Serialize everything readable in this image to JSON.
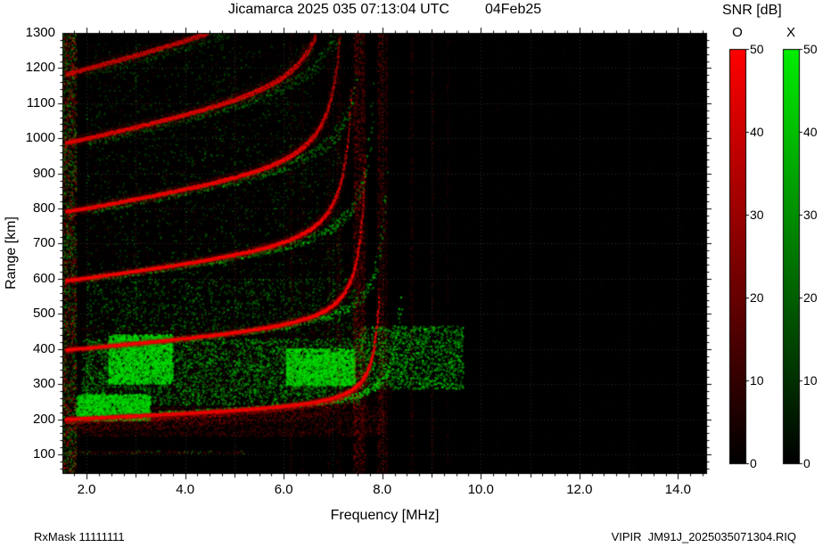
{
  "header": {
    "title": "Jicamarca 2025 035 07:13:04 UTC",
    "date": "04Feb25"
  },
  "axes": {
    "xlabel": "Frequency [MHz]",
    "ylabel": "Range [km]",
    "xtick_labels": [
      "2.0",
      "4.0",
      "6.0",
      "8.0",
      "10.0",
      "12.0",
      "14.0"
    ],
    "xtick_values": [
      2,
      4,
      6,
      8,
      10,
      12,
      14
    ],
    "ytick_values": [
      100,
      200,
      300,
      400,
      500,
      600,
      700,
      800,
      900,
      1000,
      1100,
      1200,
      1300
    ]
  },
  "colorbar": {
    "title": "SNR [dB]",
    "bars": [
      {
        "label": "O",
        "top_color": "#ff0000",
        "ticks": [
          0,
          10,
          20,
          30,
          40,
          50
        ]
      },
      {
        "label": "X",
        "top_color": "#00ee00",
        "ticks": [
          0,
          10,
          20,
          30,
          40,
          50
        ]
      }
    ]
  },
  "footer": {
    "left": "RxMask 11111111",
    "right": "VIPIR  JM91J_2025035071304.RIQ"
  },
  "chart_data": {
    "type": "heatmap",
    "subtype": "ionogram",
    "title": "Jicamarca 2025 035 07:13:04 UTC 04Feb25",
    "xlabel": "Frequency [MHz]",
    "ylabel": "Range [km]",
    "xlim": [
      1.51,
      14.59
    ],
    "ylim": [
      44,
      1300
    ],
    "snr_range_db": [
      0,
      50
    ],
    "legend": {
      "O_mode_color": "#ff0000",
      "X_mode_color": "#00dd00",
      "position": "right"
    },
    "grid": true,
    "colors": {
      "background": "#000000",
      "grid": "#85af85",
      "o": "#ff0000",
      "x": "#00dd00"
    },
    "foF2_mhz": 8.0,
    "x_trace_offset_mhz": 0.45,
    "o_trace_points": [
      [
        1.6,
        200
      ],
      [
        2.0,
        205
      ],
      [
        3.0,
        213
      ],
      [
        4.0,
        221
      ],
      [
        5.0,
        230
      ],
      [
        6.0,
        241
      ],
      [
        6.5,
        249
      ],
      [
        7.0,
        262
      ],
      [
        7.4,
        290
      ],
      [
        7.7,
        345
      ],
      [
        7.9,
        440
      ],
      [
        7.95,
        520
      ]
    ],
    "multi_hop_echoes_km_at_2mhz": [
      205,
      410,
      615,
      820,
      1025,
      1230
    ],
    "spread_f": true,
    "ionogram": {
      "model": {
        "h0": 193,
        "slope": 5.5,
        "fmin": 1.58
      },
      "x_offset": 0.45,
      "hops": [
        {
          "n": 1,
          "fc": 8.05,
          "c": 38,
          "o": 1.0,
          "x": 0.85,
          "hmax": 540
        },
        {
          "n": 2,
          "fc": 7.78,
          "c": 30,
          "o": 0.8,
          "x": 0.65,
          "hmax": 930
        },
        {
          "n": 3,
          "fc": 7.55,
          "c": 26,
          "o": 0.6,
          "x": 0.55,
          "hmax": 1150
        },
        {
          "n": 4,
          "fc": 7.38,
          "c": 23,
          "o": 0.5,
          "x": 0.45,
          "hmax": 1300
        },
        {
          "n": 5,
          "fc": 7.22,
          "c": 21,
          "o": 0.4,
          "x": 0.35,
          "hmax": 1300
        },
        {
          "n": 6,
          "fc": 7.08,
          "c": 19,
          "o": 0.3,
          "x": 0.25,
          "hmax": 1300
        }
      ],
      "rfi": [
        {
          "f": 7.5,
          "w": 0.17,
          "alpha": 0.45
        },
        {
          "f": 7.62,
          "w": 0.08,
          "alpha": 0.3
        },
        {
          "f": 7.97,
          "w": 0.13,
          "alpha": 0.35
        },
        {
          "f": 8.08,
          "w": 0.06,
          "alpha": 0.22
        },
        {
          "f": 7.12,
          "w": 0.09,
          "alpha": 0.2
        },
        {
          "f": 6.92,
          "w": 0.06,
          "alpha": 0.15
        },
        {
          "f": 6.15,
          "w": 0.06,
          "alpha": 0.16
        },
        {
          "f": 6.38,
          "w": 0.05,
          "alpha": 0.13
        },
        {
          "f": 8.6,
          "w": 0.07,
          "alpha": 0.18
        },
        {
          "f": 9.02,
          "w": 0.06,
          "alpha": 0.14
        },
        {
          "f": 9.33,
          "w": 0.05,
          "alpha": 0.12
        },
        {
          "f": 5.03,
          "w": 0.05,
          "alpha": 0.09
        },
        {
          "f": 10.35,
          "w": 0.05,
          "alpha": 0.07
        },
        {
          "f": 11.9,
          "w": 0.04,
          "alpha": 0.05
        },
        {
          "f": 13.1,
          "w": 0.04,
          "alpha": 0.04
        }
      ],
      "speckle": [
        {
          "f0": 1.51,
          "f1": 1.8,
          "h0": 44,
          "h1": 1300,
          "color": "mix",
          "n": 2600,
          "alpha": 0.5,
          "size": 1.7
        },
        {
          "f0": 1.8,
          "f1": 8.05,
          "h0": 150,
          "h1": 235,
          "color": "red",
          "n": 2600,
          "alpha": 0.22,
          "size": 1.7
        },
        {
          "f0": 1.9,
          "f1": 8.2,
          "h0": 235,
          "h1": 470,
          "color": "red",
          "n": 3200,
          "alpha": 0.16,
          "size": 1.7
        },
        {
          "f0": 1.9,
          "f1": 7.7,
          "h0": 470,
          "h1": 900,
          "color": "red",
          "n": 2200,
          "alpha": 0.13,
          "size": 1.7
        },
        {
          "f0": 2.0,
          "f1": 7.4,
          "h0": 900,
          "h1": 1270,
          "color": "red",
          "n": 1600,
          "alpha": 0.12,
          "size": 1.7
        },
        {
          "f0": 1.9,
          "f1": 7.6,
          "h0": 240,
          "h1": 430,
          "color": "green",
          "n": 3800,
          "alpha": 0.5,
          "size": 2
        },
        {
          "f0": 2.45,
          "f1": 3.75,
          "h0": 300,
          "h1": 440,
          "color": "green",
          "n": 2000,
          "alpha": 0.85,
          "size": 2.2
        },
        {
          "f0": 6.05,
          "f1": 7.45,
          "h0": 295,
          "h1": 400,
          "color": "green",
          "n": 1800,
          "alpha": 0.8,
          "size": 2.2
        },
        {
          "f0": 7.55,
          "f1": 9.65,
          "h0": 285,
          "h1": 465,
          "color": "green",
          "n": 1500,
          "alpha": 0.6,
          "size": 2
        },
        {
          "f0": 1.8,
          "f1": 3.3,
          "h0": 195,
          "h1": 270,
          "color": "green",
          "n": 1800,
          "alpha": 0.8,
          "size": 2
        },
        {
          "f0": 2.0,
          "f1": 7.5,
          "h0": 440,
          "h1": 600,
          "color": "green",
          "n": 1200,
          "alpha": 0.38,
          "size": 2
        },
        {
          "f0": 2.0,
          "f1": 7.2,
          "h0": 600,
          "h1": 1000,
          "color": "green",
          "n": 900,
          "alpha": 0.3,
          "size": 2
        },
        {
          "f0": 2.0,
          "f1": 6.6,
          "h0": 1000,
          "h1": 1270,
          "color": "green",
          "n": 600,
          "alpha": 0.26,
          "size": 2
        },
        {
          "f0": 1.51,
          "f1": 14.58,
          "h0": 44,
          "h1": 1300,
          "color": "mix",
          "n": 3500,
          "alpha": 0.09,
          "size": 1.4
        },
        {
          "f0": 8.3,
          "f1": 14.5,
          "h0": 44,
          "h1": 1300,
          "color": "red",
          "n": 1000,
          "alpha": 0.07,
          "size": 1.4
        }
      ],
      "e_layer": {
        "h": 105,
        "f0": 1.6,
        "f1": 5.2,
        "alpha": 0.3
      }
    }
  }
}
